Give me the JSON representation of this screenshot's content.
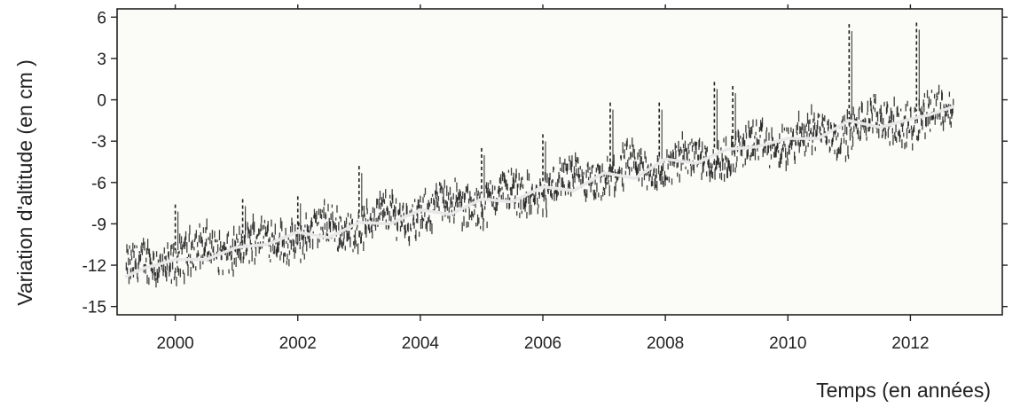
{
  "chart_data": {
    "type": "scatter",
    "title": "",
    "xlabel": "Temps (en années)",
    "ylabel": "Variation d'altitude (en cm )",
    "xlim": [
      1999.05,
      2013.5
    ],
    "ylim": [
      -15.6,
      6.6
    ],
    "x_ticks": [
      2000,
      2002,
      2004,
      2006,
      2008,
      2010,
      2012
    ],
    "x_tick_labels": [
      "2000",
      "2002",
      "2004",
      "2006",
      "2008",
      "2010",
      "2012"
    ],
    "y_ticks": [
      6,
      3,
      0,
      -3,
      -6,
      -9,
      -12,
      -15
    ],
    "y_tick_labels": [
      "6",
      "3",
      "0",
      "-3",
      "-6",
      "-9",
      "-12",
      "-15"
    ],
    "grid": false,
    "legend": "none",
    "series": [
      {
        "kind": "daily-measurements",
        "color": "#1f1f1f",
        "x_range": [
          1999.2,
          2012.7
        ],
        "trend_x": [
          1999.2,
          2000,
          2001,
          2002,
          2003,
          2004,
          2005,
          2006,
          2007,
          2008,
          2009,
          2010,
          2011,
          2012,
          2012.7
        ],
        "trend_y": [
          -12.4,
          -11.4,
          -10.6,
          -9.9,
          -9.0,
          -8.1,
          -7.3,
          -6.5,
          -5.6,
          -4.7,
          -3.9,
          -3.0,
          -2.0,
          -1.4,
          -0.8
        ],
        "spikes": [
          {
            "x": 2000.0,
            "y": -7.6
          },
          {
            "x": 2001.1,
            "y": -7.2
          },
          {
            "x": 2002.0,
            "y": -7.0
          },
          {
            "x": 2003.0,
            "y": -4.8
          },
          {
            "x": 2005.0,
            "y": -3.5
          },
          {
            "x": 2006.0,
            "y": -2.5
          },
          {
            "x": 2007.1,
            "y": -0.2
          },
          {
            "x": 2007.9,
            "y": -0.2
          },
          {
            "x": 2008.8,
            "y": 1.3
          },
          {
            "x": 2009.1,
            "y": 1.0
          },
          {
            "x": 2011.0,
            "y": 5.5
          },
          {
            "x": 2012.1,
            "y": 5.6
          }
        ]
      },
      {
        "kind": "smoothed-trend",
        "color": "#e8e8e8",
        "x": [
          1999.2,
          1999.5,
          2000,
          2000.5,
          2001,
          2001.5,
          2002,
          2002.5,
          2003,
          2003.5,
          2004,
          2004.5,
          2005,
          2005.5,
          2006,
          2006.5,
          2007,
          2007.5,
          2008,
          2008.5,
          2009,
          2009.5,
          2010,
          2010.5,
          2011,
          2011.5,
          2012,
          2012.3,
          2012.7
        ],
        "y": [
          -12.8,
          -12.2,
          -11.6,
          -11.6,
          -10.7,
          -10.5,
          -9.6,
          -10.0,
          -8.9,
          -9.0,
          -8.0,
          -8.3,
          -7.2,
          -7.4,
          -6.3,
          -6.6,
          -5.3,
          -5.7,
          -4.3,
          -4.6,
          -3.6,
          -3.4,
          -2.8,
          -2.8,
          -1.5,
          -2.0,
          -1.4,
          -1.1,
          -0.5
        ]
      }
    ]
  }
}
